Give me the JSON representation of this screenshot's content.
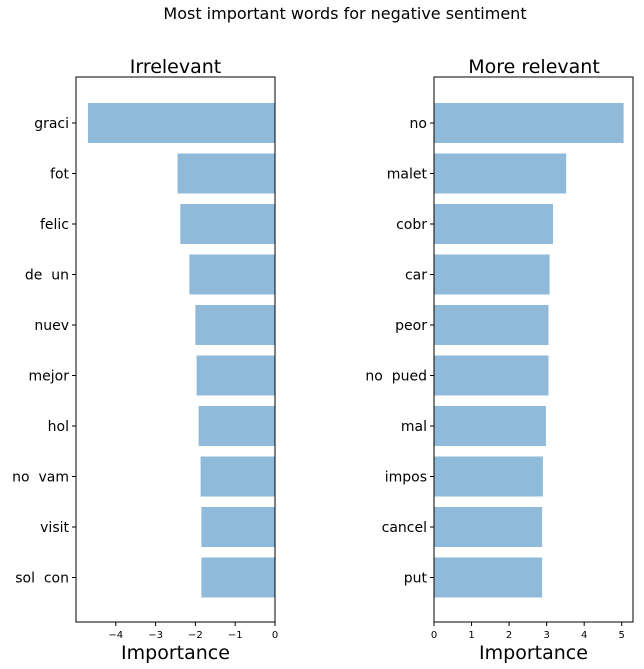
{
  "figure": {
    "suptitle": "Most important words for negative sentiment"
  },
  "chart_data": [
    {
      "type": "bar",
      "orientation": "horizontal",
      "title": "Irrelevant",
      "xlabel": "Importance",
      "ylabel": "",
      "categories": [
        "graci",
        "fot",
        "felic",
        "de  un",
        "nuev",
        "mejor",
        "hol",
        "no  vam",
        "visit",
        "sol  con"
      ],
      "values": [
        -4.7,
        -2.45,
        -2.38,
        -2.15,
        -2.0,
        -1.97,
        -1.92,
        -1.87,
        -1.85,
        -1.85
      ],
      "xlim": [
        -5.0,
        0.0
      ],
      "xticks": [
        -4,
        -3,
        -2,
        -1,
        0
      ],
      "xtick_labels": [
        "−4",
        "−3",
        "−2",
        "−1",
        "0"
      ],
      "bar_color": "#8fbad9",
      "grid": false
    },
    {
      "type": "bar",
      "orientation": "horizontal",
      "title": "More relevant",
      "xlabel": "Importance",
      "ylabel": "",
      "categories": [
        "no",
        "malet",
        "cobr",
        "car",
        "peor",
        "no  pued",
        "mal",
        "impos",
        "cancel",
        "put"
      ],
      "values": [
        5.05,
        3.52,
        3.17,
        3.08,
        3.05,
        3.05,
        2.98,
        2.9,
        2.88,
        2.88
      ],
      "xlim": [
        0.0,
        5.3
      ],
      "xticks": [
        0,
        1,
        2,
        3,
        4,
        5
      ],
      "xtick_labels": [
        "0",
        "1",
        "2",
        "3",
        "4",
        "5"
      ],
      "bar_color": "#8fbad9",
      "grid": false
    }
  ]
}
